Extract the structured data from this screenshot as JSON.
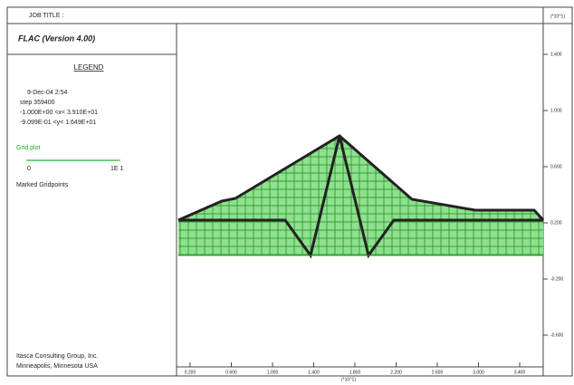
{
  "header": {
    "job_title": "JOB TITLE :",
    "program": "FLAC (Version 4.00)"
  },
  "legend": {
    "title": "LEGEND",
    "date": "9-Dec-04  2:54",
    "step": "step   359400",
    "x_range": "-1.000E+00 <x<  3.910E+01",
    "y_range": "-9.099E-01 <y<  1.649E+01",
    "grid_plot": "Grid plot",
    "scale_start": "0",
    "scale_end": "1E 1",
    "marked": "Marked Gridpoints"
  },
  "footer": {
    "company": "Itasca Consulting Group, Inc.",
    "location": "Minneapolis, Minnesota  USA"
  },
  "right_axis": {
    "multiplier": "(*10^1)",
    "labels": [
      "1.400",
      "1.000",
      "0.600",
      "0.200",
      "-0.200",
      "-0.600"
    ]
  },
  "bottom_axis": {
    "multiplier": "(*10^1)",
    "labels": [
      "0.200",
      "0.600",
      "1.000",
      "1.400",
      "1.800",
      "2.200",
      "2.600",
      "3.000",
      "3.400"
    ]
  }
}
